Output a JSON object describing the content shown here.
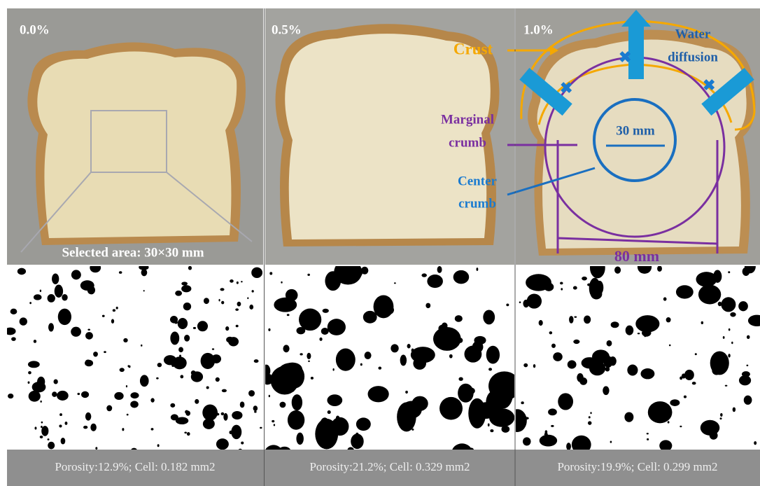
{
  "panels": [
    {
      "label": "0.0%",
      "caption": "Porosity:12.9%; Cell:  0.182 mm2"
    },
    {
      "label": "0.5%",
      "caption": "Porosity:21.2%; Cell:  0.329 mm2"
    },
    {
      "label": "1.0%",
      "caption": "Porosity:19.9%; Cell:  0.299 mm2"
    }
  ],
  "annotations": {
    "selected_area": "Selected area: 30×30 mm",
    "crust": "Crust",
    "water_diffusion": [
      "Water",
      "diffusion"
    ],
    "marginal_crumb": [
      "Marginal",
      "crumb"
    ],
    "center_crumb": [
      "Center",
      "crumb"
    ],
    "center_size": "30 mm",
    "outer_size": "80 mm"
  }
}
